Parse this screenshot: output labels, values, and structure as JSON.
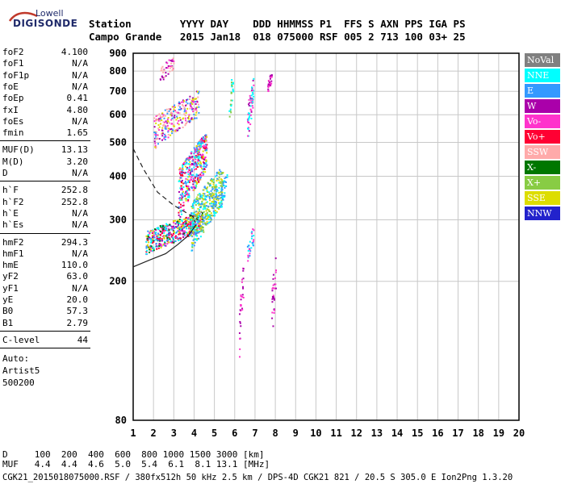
{
  "logo": {
    "line1": "Lowell",
    "line2": "DIGISONDE"
  },
  "header": {
    "row1": "Station        YYYY DAY    DDD HHMMSS P1  FFS S AXN PPS IGA PS",
    "row2": "Campo Grande   2015 Jan18  018 075000 RSF 005 2 713 100 03+ 25"
  },
  "params_groups": [
    [
      {
        "k": "foF2",
        "v": "4.100"
      },
      {
        "k": "foF1",
        "v": "N/A"
      },
      {
        "k": "foF1p",
        "v": "N/A"
      },
      {
        "k": "foE",
        "v": "N/A"
      },
      {
        "k": "foEp",
        "v": "0.41"
      },
      {
        "k": "fxI",
        "v": "4.80"
      },
      {
        "k": "foEs",
        "v": "N/A"
      },
      {
        "k": "fmin",
        "v": "1.65"
      }
    ],
    [
      {
        "k": "MUF(D)",
        "v": "13.13"
      },
      {
        "k": "M(D)",
        "v": "3.20"
      },
      {
        "k": "D",
        "v": "N/A"
      }
    ],
    [
      {
        "k": "h`F",
        "v": "252.8"
      },
      {
        "k": "h`F2",
        "v": "252.8"
      },
      {
        "k": "h`E",
        "v": "N/A"
      },
      {
        "k": "h`Es",
        "v": "N/A"
      }
    ],
    [
      {
        "k": "hmF2",
        "v": "294.3"
      },
      {
        "k": "hmF1",
        "v": "N/A"
      },
      {
        "k": "hmE",
        "v": "110.0"
      },
      {
        "k": "yF2",
        "v": "63.0"
      },
      {
        "k": "yF1",
        "v": "N/A"
      },
      {
        "k": "yE",
        "v": "20.0"
      },
      {
        "k": "B0",
        "v": "57.3"
      },
      {
        "k": "B1",
        "v": "2.79"
      }
    ],
    [
      {
        "k": "C-level",
        "v": "44"
      }
    ]
  ],
  "auto": {
    "l1": "Auto:",
    "l2": "Artist5",
    "l3": "500200"
  },
  "legend": [
    {
      "label": "NoVal",
      "color": "#808080"
    },
    {
      "label": "NNE",
      "color": "#00ffff"
    },
    {
      "label": "E",
      "color": "#3399ff"
    },
    {
      "label": "W",
      "color": "#aa00aa"
    },
    {
      "label": "Vo-",
      "color": "#ff33cc"
    },
    {
      "label": "Vo+",
      "color": "#ff0033"
    },
    {
      "label": "SSW",
      "color": "#ffaaaa"
    },
    {
      "label": "X-",
      "color": "#007700"
    },
    {
      "label": "X+",
      "color": "#88cc44"
    },
    {
      "label": "SSE",
      "color": "#dddd00"
    },
    {
      "label": "NNW",
      "color": "#2222cc"
    }
  ],
  "bottom": {
    "row1": "D     100  200  400  600  800 1000 1500 3000 [km]",
    "row2": "MUF   4.4  4.4  4.6  5.0  5.4  6.1  8.1 13.1 [MHz]",
    "row3": "CGK21_2015018075000.RSF / 380fx512h 50 kHz 2.5 km / DPS-4D CGK21 821 / 20.5 S 305.0 E Ion2Png 1.3.20"
  },
  "chart_data": {
    "type": "scatter",
    "title": "",
    "xlabel": "",
    "ylabel": "",
    "xlim": [
      1,
      20
    ],
    "ylim": [
      80,
      900
    ],
    "y_scale": "log",
    "xticks": [
      1,
      2,
      3,
      4,
      5,
      6,
      7,
      8,
      9,
      10,
      11,
      12,
      13,
      14,
      15,
      16,
      17,
      18,
      19,
      20
    ],
    "yticks": [
      80,
      200,
      300,
      400,
      500,
      600,
      700,
      800,
      900
    ],
    "grid": true,
    "clusters": [
      {
        "name": "O-trace low",
        "x": [
          1.6,
          4.4
        ],
        "y": [
          240,
          320
        ],
        "colors": [
          "#ff33cc",
          "#00ffff",
          "#dddd00",
          "#3399ff",
          "#aa00aa",
          "#007700",
          "#ff0033"
        ],
        "n": 520
      },
      {
        "name": "O-trace rise",
        "x": [
          3.2,
          4.6
        ],
        "y": [
          300,
          540
        ],
        "colors": [
          "#ff33cc",
          "#aa00aa",
          "#ff0033",
          "#3399ff",
          "#dddd00",
          "#00ffff"
        ],
        "n": 420
      },
      {
        "name": "X-trace",
        "x": [
          3.8,
          5.4
        ],
        "y": [
          240,
          430
        ],
        "colors": [
          "#3399ff",
          "#00ffff",
          "#dddd00",
          "#88cc44"
        ],
        "n": 420
      },
      {
        "name": "multihop",
        "x": [
          2.0,
          4.2
        ],
        "y": [
          480,
          710
        ],
        "colors": [
          "#ff33cc",
          "#aa00aa",
          "#ffaaaa",
          "#dddd00",
          "#3399ff"
        ],
        "n": 260
      },
      {
        "name": "upper",
        "x": [
          2.3,
          3.0
        ],
        "y": [
          740,
          900
        ],
        "colors": [
          "#ff33cc",
          "#aa00aa",
          "#ffaaaa"
        ],
        "n": 40
      },
      {
        "name": "col6.7",
        "x": [
          6.6,
          6.9
        ],
        "y": [
          500,
          780
        ],
        "colors": [
          "#ff33cc",
          "#aa00aa",
          "#00ffff"
        ],
        "n": 60
      },
      {
        "name": "col7.6",
        "x": [
          7.6,
          7.8
        ],
        "y": [
          690,
          810
        ],
        "colors": [
          "#aa00aa",
          "#ff33cc"
        ],
        "n": 30
      },
      {
        "name": "col6.3low",
        "x": [
          6.2,
          6.4
        ],
        "y": [
          120,
          230
        ],
        "colors": [
          "#aa00aa",
          "#ff33cc"
        ],
        "n": 30
      },
      {
        "name": "col6.8low",
        "x": [
          6.6,
          6.9
        ],
        "y": [
          220,
          290
        ],
        "colors": [
          "#00ffff",
          "#3399ff",
          "#ff33cc"
        ],
        "n": 30
      },
      {
        "name": "col7.8low",
        "x": [
          7.8,
          8.0
        ],
        "y": [
          130,
          250
        ],
        "colors": [
          "#aa00aa",
          "#ff33cc"
        ],
        "n": 30
      },
      {
        "name": "scatter5.5",
        "x": [
          5.3,
          5.6
        ],
        "y": [
          320,
          420
        ],
        "colors": [
          "#3399ff",
          "#00ffff"
        ],
        "n": 30
      },
      {
        "name": "scatter5.8",
        "x": [
          5.7,
          5.9
        ],
        "y": [
          560,
          820
        ],
        "colors": [
          "#00ffff",
          "#88cc44"
        ],
        "n": 25
      }
    ],
    "curves": [
      {
        "name": "profile-dashed",
        "style": "dashed",
        "x": [
          1.0,
          1.5,
          2.2,
          3.0,
          3.8,
          4.2
        ],
        "y": [
          480,
          420,
          360,
          330,
          310,
          300
        ]
      },
      {
        "name": "profile-solid",
        "style": "solid",
        "x": [
          1.0,
          1.8,
          2.6,
          3.2,
          3.7,
          4.1
        ],
        "y": [
          220,
          230,
          240,
          255,
          270,
          290
        ]
      }
    ]
  }
}
